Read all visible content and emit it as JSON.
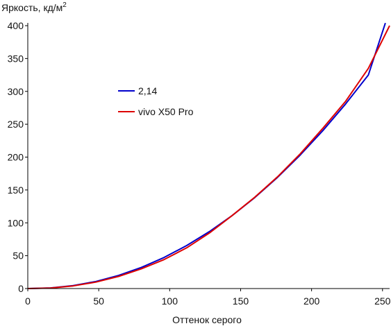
{
  "chart_data": {
    "type": "line",
    "title": "",
    "xlabel": "Оттенок серого",
    "ylabel": "Яркость, кд/м",
    "ylabel_superscript": "2",
    "xlim": [
      0,
      255
    ],
    "ylim": [
      0,
      400
    ],
    "x_ticks": [
      0,
      50,
      100,
      150,
      200,
      250
    ],
    "y_ticks": [
      0,
      50,
      100,
      150,
      200,
      250,
      300,
      350,
      400
    ],
    "grid": false,
    "legend_position": "upper-left-inside",
    "series": [
      {
        "name": "2,14",
        "color": "#0000cc",
        "x": [
          0,
          16,
          32,
          48,
          64,
          80,
          96,
          112,
          128,
          144,
          160,
          176,
          192,
          208,
          224,
          240,
          252
        ],
        "y": [
          0,
          1.0,
          4.5,
          10.8,
          20.0,
          32.1,
          47.2,
          65.4,
          86.6,
          111.0,
          138.5,
          169.2,
          203.2,
          240.4,
          281.0,
          325.0,
          404
        ]
      },
      {
        "name": "vivo X50 Pro",
        "color": "#dd0000",
        "x": [
          0,
          16,
          32,
          48,
          64,
          80,
          96,
          112,
          128,
          144,
          160,
          176,
          192,
          208,
          224,
          240,
          255
        ],
        "y": [
          0,
          0.8,
          4.0,
          9.8,
          18.5,
          30.0,
          44.0,
          62.0,
          84.5,
          111.0,
          139.0,
          170.0,
          205.0,
          244.0,
          285.0,
          335.0,
          400
        ]
      }
    ]
  }
}
